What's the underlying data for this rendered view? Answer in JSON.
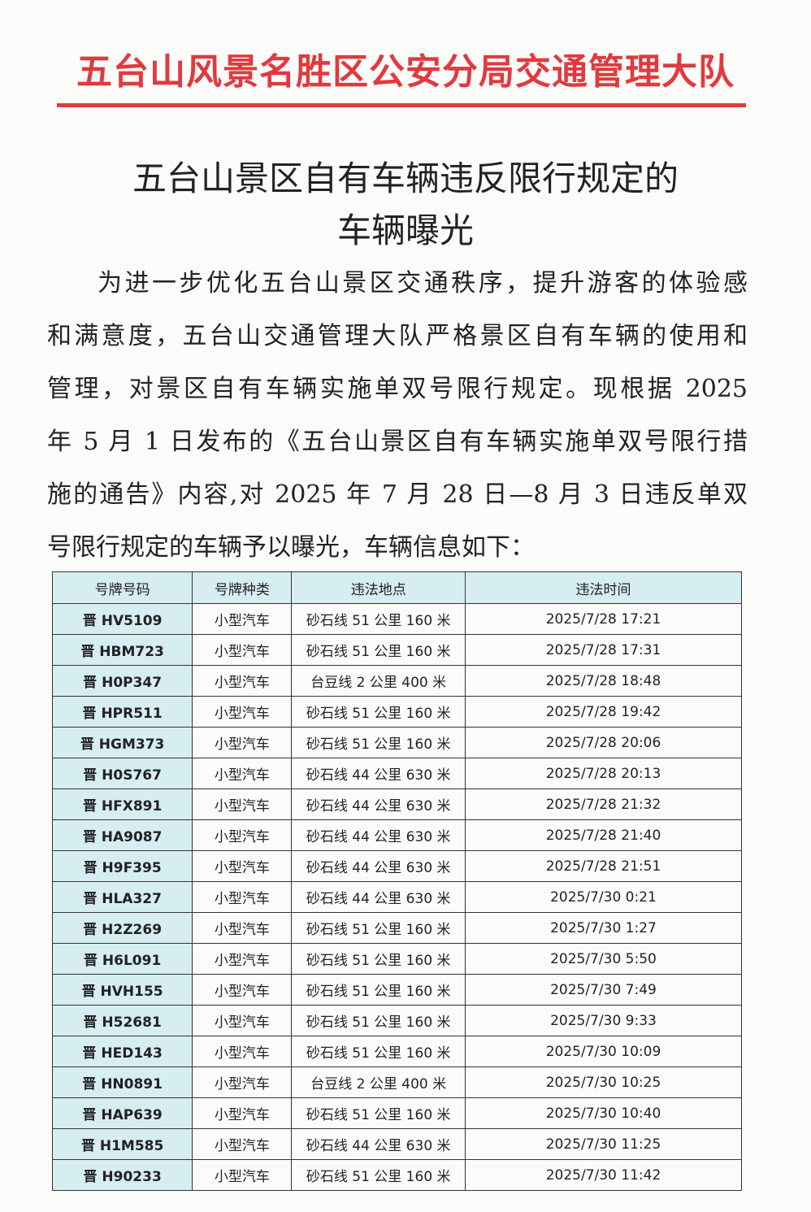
{
  "header": {
    "title": "五台山风景名胜区公安分局交通管理大队"
  },
  "document": {
    "title_lines": [
      "五台山景区自有车辆违反限行规定的",
      "车辆曝光"
    ],
    "paragraph_lines": [
      "为进一步优化五台山景区交通秩序，提升游客的体验感",
      "和满意度，五台山交通管理大队严格景区自有车辆的使用和",
      "管理，对景区自有车辆实施单双号限行规定。现根据 2025",
      "年 5 月 1 日发布的《五台山景区自有车辆实施单双号限行措",
      "施的通告》内容,对 2025 年 7 月 28 日—8 月 3 日违反单双",
      "号限行规定的车辆予以曝光，车辆信息如下："
    ]
  },
  "table": {
    "headers": [
      "号牌号码",
      "号牌种类",
      "违法地点",
      "违法时间"
    ],
    "rows": [
      [
        "晋 HV5109",
        "小型汽车",
        "砂石线 51 公里 160 米",
        "2025/7/28 17:21"
      ],
      [
        "晋 HBM723",
        "小型汽车",
        "砂石线 51 公里 160 米",
        "2025/7/28 17:31"
      ],
      [
        "晋 H0P347",
        "小型汽车",
        "台豆线 2 公里 400 米",
        "2025/7/28 18:48"
      ],
      [
        "晋 HPR511",
        "小型汽车",
        "砂石线 51 公里 160 米",
        "2025/7/28 19:42"
      ],
      [
        "晋 HGM373",
        "小型汽车",
        "砂石线 51 公里 160 米",
        "2025/7/28 20:06"
      ],
      [
        "晋 H0S767",
        "小型汽车",
        "砂石线 44 公里 630 米",
        "2025/7/28 20:13"
      ],
      [
        "晋 HFX891",
        "小型汽车",
        "砂石线 44 公里 630 米",
        "2025/7/28 21:32"
      ],
      [
        "晋 HA9087",
        "小型汽车",
        "砂石线 44 公里 630 米",
        "2025/7/28 21:40"
      ],
      [
        "晋 H9F395",
        "小型汽车",
        "砂石线 44 公里 630 米",
        "2025/7/28 21:51"
      ],
      [
        "晋 HLA327",
        "小型汽车",
        "砂石线 44 公里 630 米",
        "2025/7/30 0:21"
      ],
      [
        "晋 H2Z269",
        "小型汽车",
        "砂石线 51 公里 160 米",
        "2025/7/30 1:27"
      ],
      [
        "晋 H6L091",
        "小型汽车",
        "砂石线 51 公里 160 米",
        "2025/7/30 5:50"
      ],
      [
        "晋 HVH155",
        "小型汽车",
        "砂石线 51 公里 160 米",
        "2025/7/30 7:49"
      ],
      [
        "晋 H52681",
        "小型汽车",
        "砂石线 51 公里 160 米",
        "2025/7/30 9:33"
      ],
      [
        "晋 HED143",
        "小型汽车",
        "砂石线 51 公里 160 米",
        "2025/7/30 10:09"
      ],
      [
        "晋 HN0891",
        "小型汽车",
        "台豆线 2 公里 400 米",
        "2025/7/30 10:25"
      ],
      [
        "晋 HAP639",
        "小型汽车",
        "砂石线 51 公里 160 米",
        "2025/7/30 10:40"
      ],
      [
        "晋 H1M585",
        "小型汽车",
        "砂石线 44 公里 630 米",
        "2025/7/30 11:25"
      ],
      [
        "晋 H90233",
        "小型汽车",
        "砂石线 51 公里 160 米",
        "2025/7/30 11:42"
      ]
    ]
  }
}
